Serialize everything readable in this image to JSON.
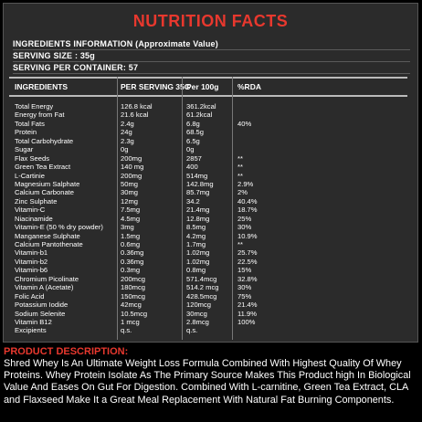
{
  "title": "NUTRITION FACTS",
  "info": {
    "line1": "INGREDIENTS INFORMATION (Approximate Value)",
    "line2": "SERVING SIZE : 35g",
    "line3": "SERVING PER CONTAINER: 57"
  },
  "headers": {
    "ingredients": "INGREDIENTS",
    "per_serving": "PER SERVING 35G",
    "per_100": "Per 100g",
    "rda": "%RDA"
  },
  "rows": [
    [
      "Total Energy",
      "126.8 kcal",
      "361.2kcal",
      ""
    ],
    [
      "Energy from Fat",
      "21.6 kcal",
      "61.2kcal",
      ""
    ],
    [
      "Total Fats",
      "2.4g",
      "6.8g",
      "40%"
    ],
    [
      "Protein",
      "24g",
      "68.5g",
      ""
    ],
    [
      "Total Carbohydrate",
      "2.3g",
      "6.5g",
      ""
    ],
    [
      "Sugar",
      "0g",
      "0g",
      ""
    ],
    [
      "Flax Seeds",
      "200mg",
      "2857",
      "**"
    ],
    [
      "Green Tea Extract",
      "140 mg",
      "400",
      "**"
    ],
    [
      "L-Cartinie",
      "200mg",
      "514mg",
      "**"
    ],
    [
      "Magnesium Salphate",
      "50mg",
      "142.8mg",
      "2.9%"
    ],
    [
      "Calcium Carbonate",
      "30mg",
      "85.7mg",
      "2%"
    ],
    [
      "Zinc Sulphate",
      "12mg",
      "34.2",
      "40.4%"
    ],
    [
      "Vitamin-C",
      "7.5mg",
      "21.4mg",
      "18.7%"
    ],
    [
      "Niacinamide",
      "4.5mg",
      "12.8mg",
      "25%"
    ],
    [
      "Vitamin-E (50 % dry powder)",
      "3mg",
      "8.5mg",
      "30%"
    ],
    [
      "Manganese Sulphate",
      "1.5mg",
      "4.2mg",
      "10.9%"
    ],
    [
      "Calcium Pantothenate",
      "0.6mg",
      "1.7mg",
      "**"
    ],
    [
      "Vitamin-b1",
      "0.36mg",
      "1.02mg",
      "25.7%"
    ],
    [
      "Vitamin-b2",
      "0.36mg",
      "1.02mg",
      "22.5%"
    ],
    [
      "Vitamin-b6",
      "0.3mg",
      "0.8mg",
      "15%"
    ],
    [
      "Chromium Picolinate",
      "200mcg",
      "571.4mcg",
      "32.8%"
    ],
    [
      "Vitamin A (Acetate)",
      "180mcg",
      "514.2 mcg",
      "30%"
    ],
    [
      "Folic Acid",
      "150mcg",
      "428.5mcg",
      "75%"
    ],
    [
      "Potassium Iodide",
      "42mcg",
      "120mcg",
      "21.4%"
    ],
    [
      "Sodium Selenite",
      "10.5mcg",
      "30mcg",
      "11.9%"
    ],
    [
      "Vitamin B12",
      "1 mcg",
      "2.8mcg",
      "100%"
    ],
    [
      "Excipients",
      "q.s.",
      "q.s.",
      ""
    ]
  ],
  "description": {
    "heading": "PRODUCT DESCRIPTION:",
    "text": "Shred Whey Is An Ultimate Weight Loss Formula Combined With Highest Quality Of Whey Proteins. Whey Protein Isolate As The Primary Source Makes This Product high In Biological Value And Eases On Gut For Digestion. Combined With L-carnitine, Green Tea Extract, CLA and Flaxseed Make It a Great Meal Replacement With Natural Fat Burning Components."
  }
}
